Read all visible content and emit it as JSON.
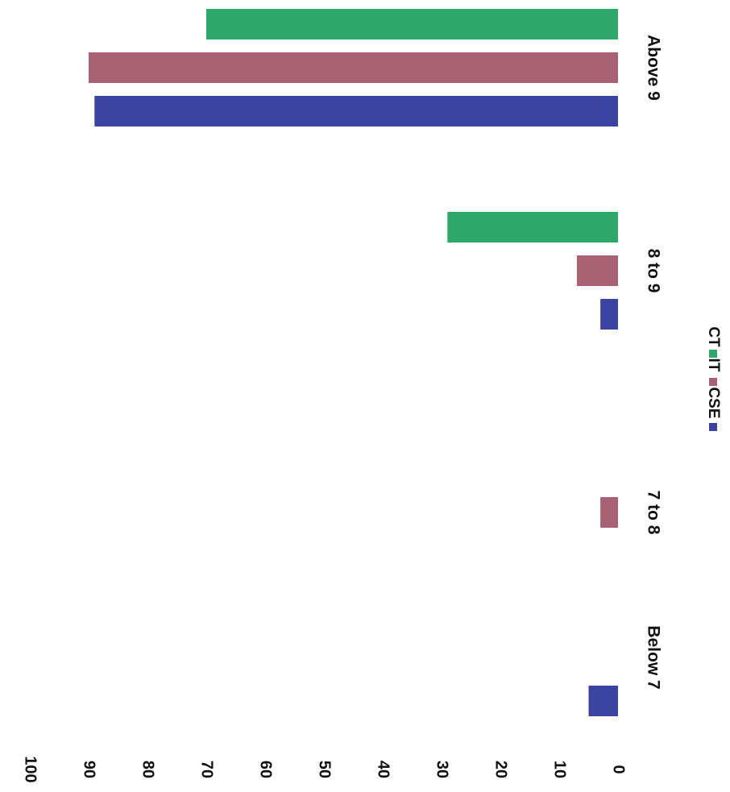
{
  "chart_data": {
    "type": "bar",
    "orientation": "rotated-90-clockwise",
    "categories": [
      "Below 7",
      "7 to 8",
      "8 to 9",
      "Above 9"
    ],
    "series": [
      {
        "name": "CSE",
        "color": "#3a44a0",
        "values": [
          5,
          0,
          3,
          89
        ]
      },
      {
        "name": "IT",
        "color": "#a86274",
        "values": [
          0,
          3,
          7,
          90
        ]
      },
      {
        "name": "CT",
        "color": "#2ea86a",
        "values": [
          0,
          0,
          29,
          70
        ]
      }
    ],
    "ylim": [
      0,
      100
    ],
    "yticks": [
      "0",
      "10",
      "20",
      "30",
      "40",
      "50",
      "60",
      "70",
      "80",
      "90",
      "100"
    ],
    "title": "",
    "xlabel": "",
    "ylabel": "",
    "legend": {
      "position": "bottom",
      "entries": [
        "CSE",
        "IT",
        "CT"
      ]
    },
    "grid": false
  }
}
